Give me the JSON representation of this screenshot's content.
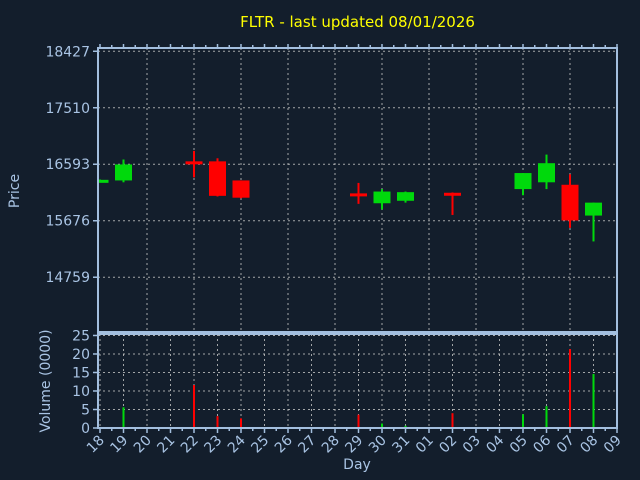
{
  "chart_data": {
    "type": "candlestick+volume",
    "title": "FLTR - last updated 08/01/2026",
    "xlabel": "Day",
    "price_ylabel": "Price",
    "volume_ylabel": "Volume (0000)",
    "x_ticklabels": [
      "18",
      "19",
      "20",
      "21",
      "22",
      "23",
      "24",
      "25",
      "26",
      "27",
      "28",
      "29",
      "30",
      "31",
      "01",
      "02",
      "03",
      "04",
      "05",
      "06",
      "07",
      "08",
      "09"
    ],
    "price_yticks": [
      18427,
      17510,
      16593,
      15676,
      14759
    ],
    "price_ylim": [
      13870,
      18480
    ],
    "volume_yticks": [
      25,
      20,
      15,
      10,
      5,
      0
    ],
    "volume_ylim": [
      0,
      25.4
    ],
    "grid": true,
    "legend": "none",
    "candles": [
      {
        "day": "18",
        "open": 16325,
        "high": 16345,
        "low": 16320,
        "close": 16340,
        "volume": 0.2
      },
      {
        "day": "19",
        "open": 16330,
        "high": 16670,
        "low": 16300,
        "close": 16590,
        "volume": 5.6
      },
      {
        "day": "22",
        "open": 16640,
        "high": 16810,
        "low": 16380,
        "close": 16620,
        "volume": 11.6
      },
      {
        "day": "23",
        "open": 16640,
        "high": 16690,
        "low": 16070,
        "close": 16080,
        "volume": 3.2
      },
      {
        "day": "24",
        "open": 16330,
        "high": 16330,
        "low": 16040,
        "close": 16050,
        "volume": 2.6
      },
      {
        "day": "29",
        "open": 16120,
        "high": 16290,
        "low": 15950,
        "close": 16100,
        "volume": 3.6
      },
      {
        "day": "30",
        "open": 15960,
        "high": 16190,
        "low": 15860,
        "close": 16150,
        "volume": 1.2
      },
      {
        "day": "31",
        "open": 16000,
        "high": 16150,
        "low": 15970,
        "close": 16140,
        "volume": 0.6
      },
      {
        "day": "02",
        "open": 16130,
        "high": 16135,
        "low": 15770,
        "close": 16120,
        "volume": 4.0
      },
      {
        "day": "05",
        "open": 16190,
        "high": 16450,
        "low": 16090,
        "close": 16450,
        "volume": 3.7
      },
      {
        "day": "06",
        "open": 16300,
        "high": 16750,
        "low": 16190,
        "close": 16610,
        "volume": 5.9
      },
      {
        "day": "07",
        "open": 16260,
        "high": 16430,
        "low": 15560,
        "close": 15680,
        "volume": 21.3
      },
      {
        "day": "08",
        "open": 15760,
        "high": 15970,
        "low": 15340,
        "close": 15970,
        "volume": 14.6
      }
    ],
    "colors": {
      "up": "#00d90c",
      "down": "#ff0000",
      "background": "#131e2c",
      "axis": "#a3bfdf",
      "tick_label": "#a9c4e4",
      "grid": "#c8c8c8",
      "title": "#ffff00"
    }
  }
}
